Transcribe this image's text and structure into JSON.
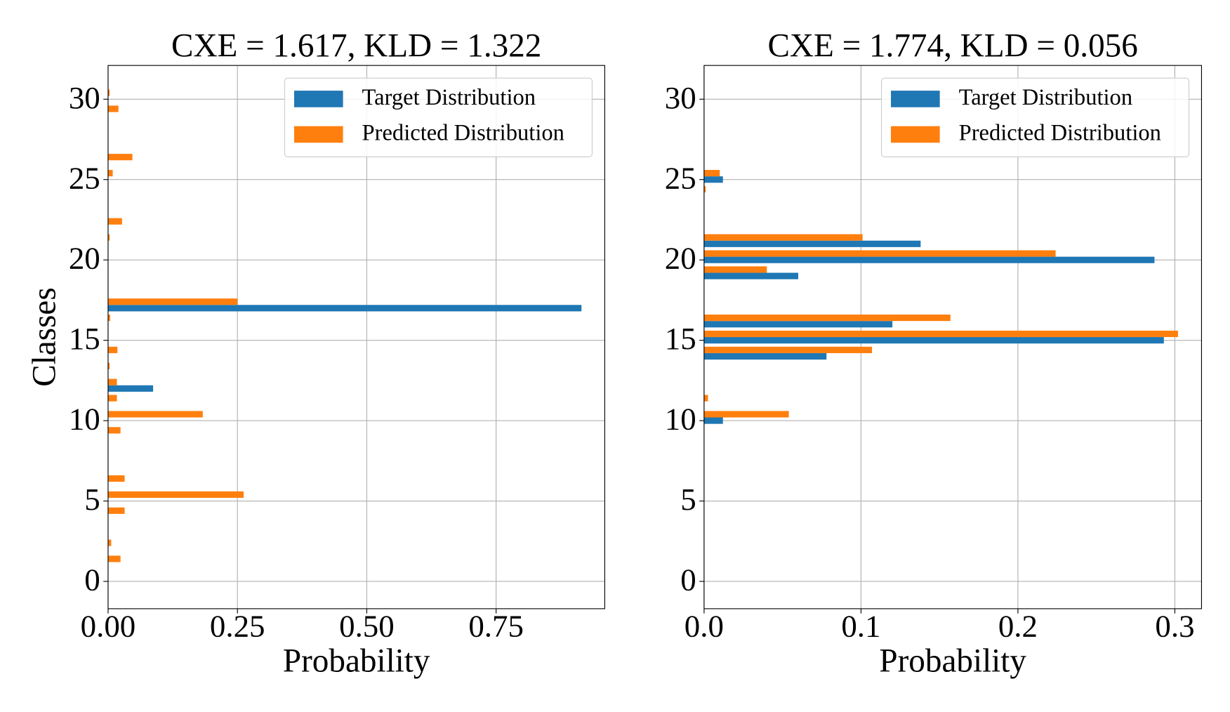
{
  "chart_data": [
    {
      "type": "barh",
      "title": "CXE = 1.617, KLD = 1.322",
      "xlabel": "Probability",
      "ylabel": "Classes",
      "y": [
        0,
        1,
        2,
        3,
        4,
        5,
        6,
        7,
        8,
        9,
        10,
        11,
        12,
        13,
        14,
        15,
        16,
        17,
        18,
        19,
        20,
        21,
        22,
        23,
        24,
        25,
        26,
        27,
        28,
        29,
        30,
        31
      ],
      "series": [
        {
          "name": "Target Distribution",
          "color": "#1f77b4",
          "values": [
            0,
            0,
            0,
            0,
            0,
            0,
            0,
            0,
            0,
            0,
            0,
            0,
            0.087,
            0,
            0,
            0,
            0,
            0.915,
            0,
            0,
            0,
            0,
            0,
            0,
            0,
            0,
            0,
            0,
            0,
            0,
            0,
            0
          ]
        },
        {
          "name": "Predicted Distribution",
          "color": "#ff7f0e",
          "values": [
            0,
            0.024,
            0.006,
            0,
            0.032,
            0.262,
            0.032,
            0,
            0,
            0.024,
            0.183,
            0.017,
            0.017,
            0.003,
            0.018,
            0,
            0.004,
            0.25,
            0,
            0,
            0,
            0.003,
            0.027,
            0,
            0,
            0.009,
            0.047,
            0,
            0,
            0.02,
            0.003,
            0
          ]
        }
      ],
      "xlim": [
        0,
        0.96
      ],
      "xticks": [
        {
          "value": 0,
          "label": "0.00"
        },
        {
          "value": 0.25,
          "label": "0.25"
        },
        {
          "value": 0.5,
          "label": "0.50"
        },
        {
          "value": 0.75,
          "label": "0.75"
        }
      ],
      "ylim": [
        -1.7,
        32.1
      ],
      "yticks": [
        0,
        5,
        10,
        15,
        20,
        25,
        30
      ],
      "grid": true,
      "legend": "upper right"
    },
    {
      "type": "barh",
      "title": "CXE = 1.774, KLD = 0.056",
      "xlabel": "Probability",
      "y": [
        0,
        1,
        2,
        3,
        4,
        5,
        6,
        7,
        8,
        9,
        10,
        11,
        12,
        13,
        14,
        15,
        16,
        17,
        18,
        19,
        20,
        21,
        22,
        23,
        24,
        25,
        26,
        27,
        28,
        29,
        30,
        31
      ],
      "series": [
        {
          "name": "Target Distribution",
          "color": "#1f77b4",
          "values": [
            0,
            0,
            0,
            0,
            0,
            0,
            0,
            0,
            0,
            0,
            0.012,
            0,
            0,
            0,
            0.078,
            0.293,
            0.12,
            0,
            0,
            0.06,
            0.287,
            0.138,
            0,
            0,
            0,
            0.012,
            0,
            0,
            0,
            0,
            0,
            0
          ]
        },
        {
          "name": "Predicted Distribution",
          "color": "#ff7f0e",
          "values": [
            0,
            0,
            0,
            0,
            0,
            0,
            0,
            0,
            0,
            0,
            0.054,
            0.0025,
            0,
            0,
            0.107,
            0.302,
            0.157,
            0,
            0,
            0.04,
            0.224,
            0.101,
            0,
            0,
            0.001,
            0.01,
            0,
            0,
            0,
            0,
            0,
            0
          ]
        }
      ],
      "xlim": [
        0,
        0.317
      ],
      "xticks": [
        {
          "value": 0,
          "label": "0.0"
        },
        0.1,
        0.2,
        0.3
      ],
      "ylim": [
        -1.7,
        32.1
      ],
      "yticks": [
        0,
        5,
        10,
        15,
        20,
        25,
        30
      ],
      "grid": true,
      "legend": "upper right"
    }
  ]
}
